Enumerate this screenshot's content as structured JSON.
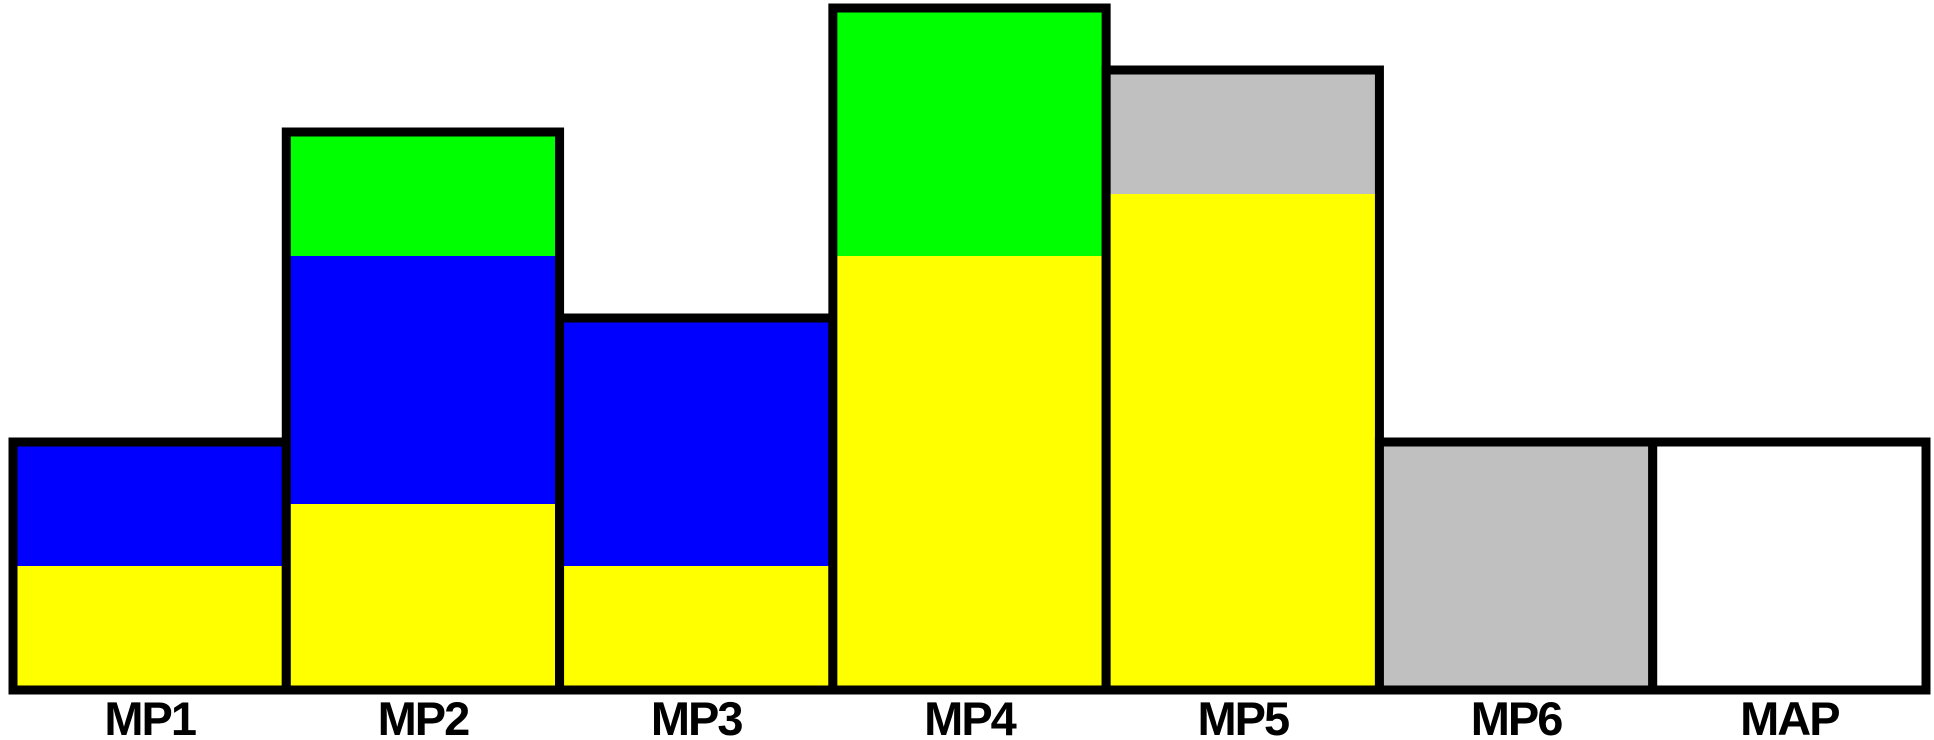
{
  "chart_data": {
    "type": "bar",
    "stacked": true,
    "categories": [
      "MP1",
      "MP2",
      "MP3",
      "MP4",
      "MP5",
      "MP6",
      "MAP"
    ],
    "segments": [
      [
        {
          "color": "#ffff00",
          "value": 1
        },
        {
          "color": "#0000ff",
          "value": 1
        }
      ],
      [
        {
          "color": "#ffff00",
          "value": 1.5
        },
        {
          "color": "#0000ff",
          "value": 2
        },
        {
          "color": "#00ff00",
          "value": 1
        }
      ],
      [
        {
          "color": "#ffff00",
          "value": 1
        },
        {
          "color": "#0000ff",
          "value": 2
        }
      ],
      [
        {
          "color": "#ffff00",
          "value": 3.5
        },
        {
          "color": "#00ff00",
          "value": 2
        }
      ],
      [
        {
          "color": "#ffff00",
          "value": 4
        },
        {
          "color": "#c0c0c0",
          "value": 1
        }
      ],
      [
        {
          "color": "#c0c0c0",
          "value": 2
        }
      ],
      [
        {
          "color": "#ffffff",
          "value": 2
        }
      ]
    ],
    "ylim": [
      0,
      5.5
    ],
    "grid": false,
    "legend": "none",
    "title": "",
    "xlabel": "",
    "ylabel": ""
  }
}
